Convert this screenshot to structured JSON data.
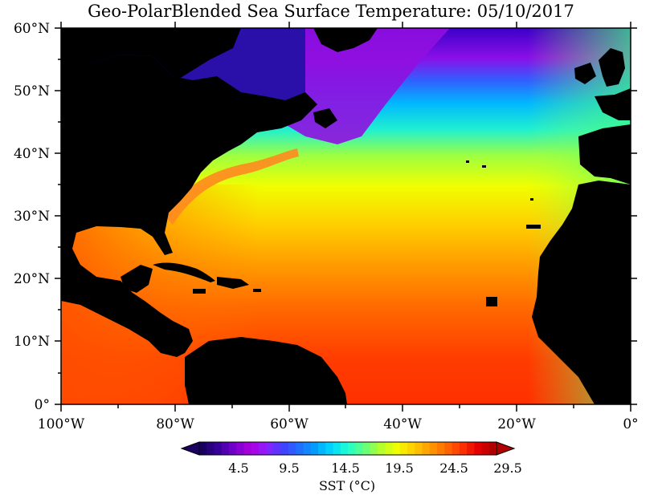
{
  "title": "Geo-PolarBlended Sea Surface Temperature: 05/10/2017",
  "map": {
    "lat_labels": [
      "60°N",
      "50°N",
      "40°N",
      "30°N",
      "20°N",
      "10°N",
      "0°"
    ],
    "lon_labels": [
      "100°W",
      "80°W",
      "60°W",
      "40°W",
      "20°W",
      "0°"
    ],
    "extent": {
      "lon": [
        -100,
        0
      ],
      "lat": [
        0,
        60
      ]
    }
  },
  "colorbar": {
    "tick_labels": [
      "4.5",
      "9.5",
      "14.5",
      "19.5",
      "24.5",
      "29.5"
    ],
    "label": "SST (°C)",
    "colors": [
      "#1a0060",
      "#3a00a0",
      "#7a00d0",
      "#b000e0",
      "#8a20ff",
      "#4040ff",
      "#2070ff",
      "#00a0ff",
      "#00d8ff",
      "#20ffd0",
      "#60ff80",
      "#b0ff30",
      "#f0ff00",
      "#ffd000",
      "#ffa000",
      "#ff7000",
      "#ff3800",
      "#e80000",
      "#b00000"
    ]
  },
  "colors": {
    "land": "#000000",
    "deep_water": "#ff3a00"
  }
}
